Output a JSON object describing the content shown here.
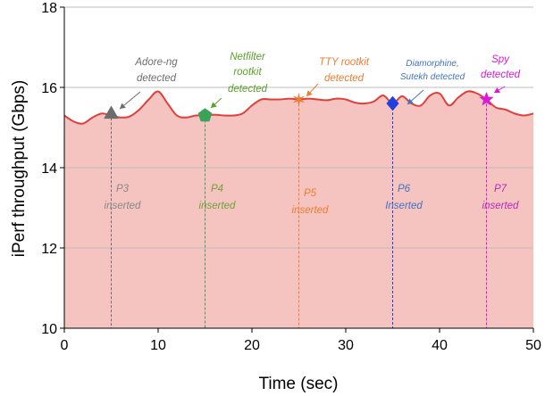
{
  "chart_data": {
    "type": "area",
    "xlabel": "Time (sec)",
    "ylabel": "iPerf throughput (Gbps)",
    "xlim": [
      0,
      50
    ],
    "ylim": [
      10,
      18
    ],
    "x_ticks": [
      0,
      10,
      20,
      30,
      40,
      50
    ],
    "y_ticks": [
      10,
      12,
      14,
      16,
      18
    ],
    "grid": "horizontal",
    "colors": {
      "line": "#e0403a",
      "fill": "#f5c3c0"
    },
    "series": [
      {
        "x": [
          0,
          1,
          2,
          3,
          4,
          5,
          6,
          7,
          8,
          9,
          10,
          11,
          12,
          13,
          14,
          15,
          16,
          17,
          18,
          19,
          20,
          21,
          22,
          23,
          24,
          25,
          26,
          27,
          28,
          29,
          30,
          31,
          32,
          33,
          34,
          35,
          36,
          37,
          38,
          39,
          40,
          41,
          42,
          43,
          44,
          45,
          46,
          47,
          48,
          49,
          50
        ],
        "values": [
          15.3,
          15.15,
          15.1,
          15.25,
          15.35,
          15.3,
          15.25,
          15.28,
          15.45,
          15.7,
          15.9,
          15.6,
          15.3,
          15.25,
          15.3,
          15.3,
          15.32,
          15.3,
          15.3,
          15.35,
          15.55,
          15.7,
          15.7,
          15.7,
          15.72,
          15.7,
          15.72,
          15.7,
          15.68,
          15.72,
          15.7,
          15.62,
          15.6,
          15.65,
          15.8,
          15.6,
          15.78,
          15.6,
          15.55,
          15.8,
          15.85,
          15.55,
          15.75,
          15.9,
          15.85,
          15.7,
          15.5,
          15.45,
          15.35,
          15.3,
          15.35
        ]
      }
    ],
    "events": [
      {
        "x": 5,
        "y": 15.35,
        "marker": "triangle",
        "color": "#6d6d6d",
        "detected": [
          "Adore-ng",
          "detected"
        ],
        "inserted": [
          "P3",
          "inserted"
        ],
        "inserted_color": "#888888"
      },
      {
        "x": 15,
        "y": 15.3,
        "marker": "pentagon",
        "color": "#3aa35a",
        "detected": [
          "Netfilter",
          "rootkit",
          "detected"
        ],
        "inserted": [
          "P4",
          "inserted"
        ],
        "text_color": "#5aa02c",
        "inserted_color": "#6fa338"
      },
      {
        "x": 25,
        "y": 15.7,
        "marker": "star6",
        "color": "#ed7d31",
        "detected": [
          "TTY rootkit",
          "detected"
        ],
        "inserted": [
          "P5",
          "inserted"
        ],
        "inserted_color": "#ed7d31"
      },
      {
        "x": 35,
        "y": 15.6,
        "marker": "diamond",
        "color": "#1f3fe0",
        "detected": [
          "Diamorphine,",
          "Sutekh detected"
        ],
        "inserted": [
          "P6",
          "Inserted"
        ],
        "text_color": "#4472c4",
        "inserted_color": "#4472c4"
      },
      {
        "x": 45,
        "y": 15.7,
        "marker": "star5",
        "color": "#d81ad8",
        "detected": [
          "Spy",
          "detected"
        ],
        "inserted": [
          "P7",
          "inserted"
        ],
        "inserted_color": "#b82bb8"
      }
    ]
  }
}
